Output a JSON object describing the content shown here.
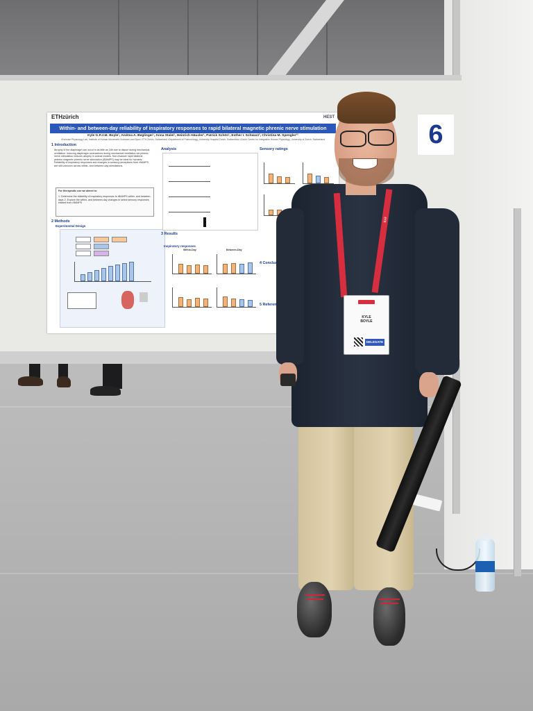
{
  "scene": {
    "board_number": "6"
  },
  "poster": {
    "institution_logo": "ETHzürich",
    "society_logo": "HEST",
    "title": "Within- and between-day reliability of inspiratory responses to rapid bilateral magnetic phrenic nerve stimulation",
    "authors": "Kyle G.P.J.M. Boyle¹, Andrea A. Beglinger¹, Anna Stalel¹, Heinrich Häusler¹, Patrick Schön¹, Esther I. Schwarz², Christina M. Spengler¹²",
    "affiliations": "¹Exercise Physiology Lab, Institute of Human Movement Sciences and Sport, ETH Zurich, Switzerland  ²Department of Pulmonology, University Hospital Zurich, Switzerland  ³Zurich Center for Integrative Human Physiology, University of Zurich, Switzerland",
    "sections": {
      "introduction": "1 Introduction",
      "methods": "2 Methods",
      "experimental_design": "Experimental Design",
      "analysis": "Analysis",
      "sensory_ratings": "Sensory ratings",
      "results": "3 Results",
      "inspiratory_responses": "Inspiratory responses",
      "conclusions": "4 Conclusions",
      "references": "5 References"
    },
    "intro_text": "Atrophy of the diaphragm can occur in as little as 18h due to disuse during mechanical ventilation. Inducing diaphragm contractions during mechanical ventilation via phrenic nerve stimulation reduces atrophy in animal models. Non-invasive rapid bilateral anterior magnetic phrenic nerve stimulation (rBAMPS) may be ideal for humans. Reliability of inspiratory responses and changes in sensory perceptions from rBAMPS are still unknown across within- and between-day stimulations.",
    "aims_title": "For therapeutic use we aimed to:",
    "aims": "1. Determine the reliability of inspiratory responses to rBAMPS within- and between-days  2. Explore the within- and between-day changes in select sensory responses elicited from rBAMPS",
    "subplot_within_day": "Within-Day",
    "subplot_between_day": "Between-Day"
  },
  "badge": {
    "name_line1": "KYLE",
    "name_line2": "BOYLE",
    "role": "DELEGATE"
  },
  "lanyard": {
    "text": "ers"
  }
}
